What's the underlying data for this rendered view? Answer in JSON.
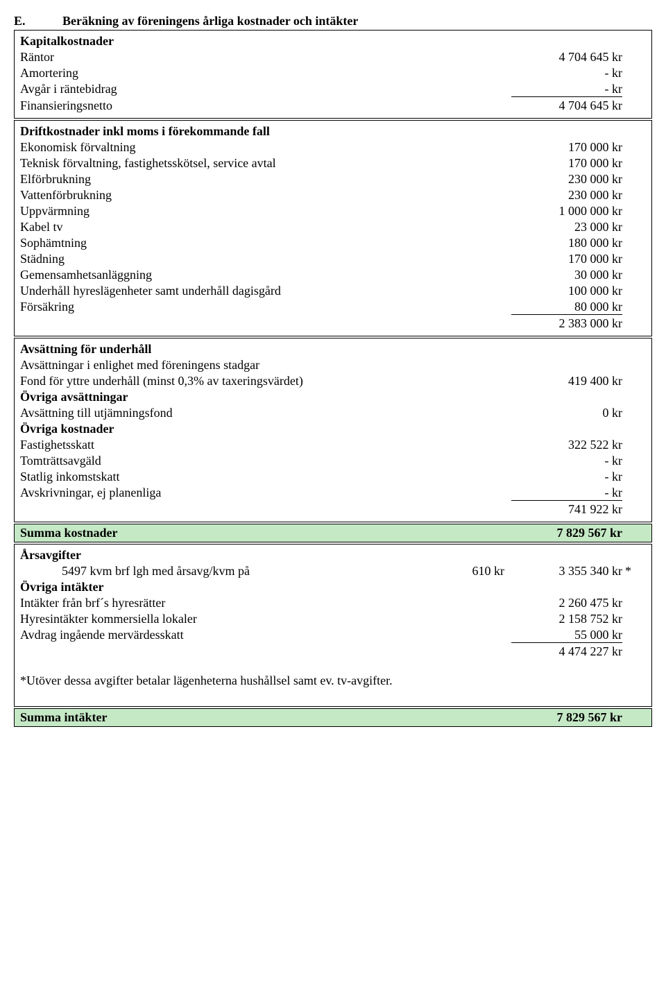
{
  "header": {
    "letter": "E.",
    "title": "Beräkning av föreningens årliga kostnader och intäkter"
  },
  "box1": {
    "heading": "Kapitalkostnader",
    "rows": {
      "rantor": {
        "label": "Räntor",
        "amount": "4 704 645 kr"
      },
      "amortering": {
        "label": "Amortering",
        "amount": "-   kr"
      },
      "avgar": {
        "label": "Avgår i räntebidrag",
        "amount": "-   kr"
      },
      "finansnetto": {
        "label": "Finansieringsnetto",
        "amount": "4 704 645 kr"
      }
    }
  },
  "box2": {
    "heading": "Driftkostnader inkl moms i förekommande fall",
    "rows": {
      "ekonomisk": {
        "label": "Ekonomisk förvaltning",
        "amount": "170 000 kr"
      },
      "teknisk": {
        "label": "Teknisk förvaltning, fastighetsskötsel, service avtal",
        "amount": "170 000 kr"
      },
      "el": {
        "label": "Elförbrukning",
        "amount": "230 000 kr"
      },
      "vatten": {
        "label": "Vattenförbrukning",
        "amount": "230 000 kr"
      },
      "uppvarmning": {
        "label": "Uppvärmning",
        "amount": "1 000 000 kr"
      },
      "kabel": {
        "label": "Kabel tv",
        "amount": "23 000 kr"
      },
      "sop": {
        "label": "Sophämtning",
        "amount": "180 000 kr"
      },
      "stadning": {
        "label": "Städning",
        "amount": "170 000 kr"
      },
      "gemensam": {
        "label": "Gemensamhetsanläggning",
        "amount": "30 000 kr"
      },
      "underhall": {
        "label": "Underhåll hyreslägenheter samt underhåll dagisgård",
        "amount": "100 000 kr"
      },
      "forsakring": {
        "label": "Försäkring",
        "amount": "80 000 kr"
      },
      "sum": {
        "amount": "2 383 000 kr"
      }
    }
  },
  "box3": {
    "heading1": "Avsättning för underhåll",
    "sub1": "Avsättningar i enlighet med föreningens stadgar",
    "fond": {
      "label": "Fond för yttre underhåll (minst 0,3% av taxeringsvärdet)",
      "amount": "419 400 kr"
    },
    "heading2": "Övriga avsättningar",
    "utjamning": {
      "label": "Avsättning till utjämningsfond",
      "amount": "0 kr"
    },
    "heading3": "Övriga kostnader",
    "fastighetsskatt": {
      "label": "Fastighetsskatt",
      "amount": "322 522 kr"
    },
    "tomtratts": {
      "label": "Tomträttsavgäld",
      "amount": "-   kr"
    },
    "statlig": {
      "label": "Statlig inkomstskatt",
      "amount": "-   kr"
    },
    "avskriv": {
      "label": "Avskrivningar, ej planenliga",
      "amount": "-   kr"
    },
    "sum": {
      "amount": "741 922 kr"
    }
  },
  "summa_kostnader": {
    "label": "Summa kostnader",
    "amount": "7 829 567 kr"
  },
  "box4": {
    "heading1": "Årsavgifter",
    "arsavg": {
      "label": "5497 kvm brf lgh med årsavg/kvm på",
      "mid": "610 kr",
      "amount": "3 355 340 kr",
      "tail": "*"
    },
    "heading2": "Övriga intäkter",
    "hyresratter": {
      "label": "Intäkter från brf´s hyresrätter",
      "amount": "2 260 475 kr"
    },
    "kommersiella": {
      "label": "Hyresintäkter kommersiella lokaler",
      "amount": "2 158 752 kr"
    },
    "avdrag": {
      "label": "Avdrag ingående mervärdesskatt",
      "amount": "55 000 kr"
    },
    "sum": {
      "amount": "4 474 227 kr"
    },
    "footnote": "*Utöver dessa avgifter betalar lägenheterna hushållsel samt ev. tv-avgifter."
  },
  "summa_intakter": {
    "label": "Summa intäkter",
    "amount": "7 829 567 kr"
  }
}
